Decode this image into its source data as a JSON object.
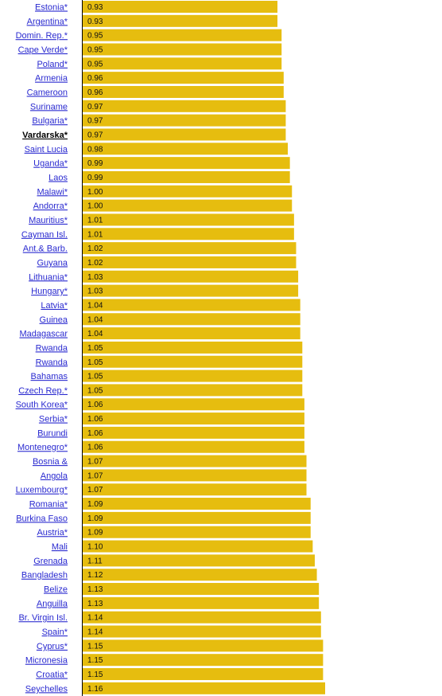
{
  "chart_data": {
    "type": "bar",
    "orientation": "horizontal",
    "bar_color": "#e6bd0f",
    "label_color": "#2a2ad0",
    "highlighted_category": "Vardarska*",
    "categories": [
      "Estonia*",
      "Argentina*",
      "Domin. Rep.*",
      "Cape Verde*",
      "Poland*",
      "Armenia",
      "Cameroon",
      "Suriname",
      "Bulgaria*",
      "Vardarska*",
      "Saint Lucia",
      "Uganda*",
      "Laos",
      "Malawi*",
      "Andorra*",
      "Mauritius*",
      "Cayman Isl.",
      "Ant.& Barb.",
      "Guyana",
      "Lithuania*",
      "Hungary*",
      "Latvia*",
      "Guinea",
      "Madagascar",
      "Rwanda",
      "Rwanda",
      "Bahamas",
      "Czech Rep.*",
      "South Korea*",
      "Serbia*",
      "Burundi",
      "Montenegro*",
      "Bosnia &",
      "Angola",
      "Luxembourg*",
      "Romania*",
      "Burkina Faso",
      "Austria*",
      "Mali",
      "Grenada",
      "Bangladesh",
      "Belize",
      "Anguilla",
      "Br. Virgin Isl.",
      "Spain*",
      "Cyprus*",
      "Micronesia",
      "Croatia*",
      "Seychelles"
    ],
    "values": [
      0.93,
      0.93,
      0.95,
      0.95,
      0.95,
      0.96,
      0.96,
      0.97,
      0.97,
      0.97,
      0.98,
      0.99,
      0.99,
      1.0,
      1.0,
      1.01,
      1.01,
      1.02,
      1.02,
      1.03,
      1.03,
      1.04,
      1.04,
      1.04,
      1.05,
      1.05,
      1.05,
      1.05,
      1.06,
      1.06,
      1.06,
      1.06,
      1.07,
      1.07,
      1.07,
      1.09,
      1.09,
      1.09,
      1.1,
      1.11,
      1.12,
      1.13,
      1.13,
      1.14,
      1.14,
      1.15,
      1.15,
      1.15,
      1.16
    ],
    "value_labels": [
      "0.93",
      "0.93",
      "0.95",
      "0.95",
      "0.95",
      "0.96",
      "0.96",
      "0.97",
      "0.97",
      "0.97",
      "0.98",
      "0.99",
      "0.99",
      "1.00",
      "1.00",
      "1.01",
      "1.01",
      "1.02",
      "1.02",
      "1.03",
      "1.03",
      "1.04",
      "1.04",
      "1.04",
      "1.05",
      "1.05",
      "1.05",
      "1.05",
      "1.06",
      "1.06",
      "1.06",
      "1.06",
      "1.07",
      "1.07",
      "1.07",
      "1.09",
      "1.09",
      "1.09",
      "1.10",
      "1.11",
      "1.12",
      "1.13",
      "1.13",
      "1.14",
      "1.14",
      "1.15",
      "1.15",
      "1.15",
      "1.16"
    ],
    "title": "",
    "xlabel": "",
    "ylabel": ""
  }
}
